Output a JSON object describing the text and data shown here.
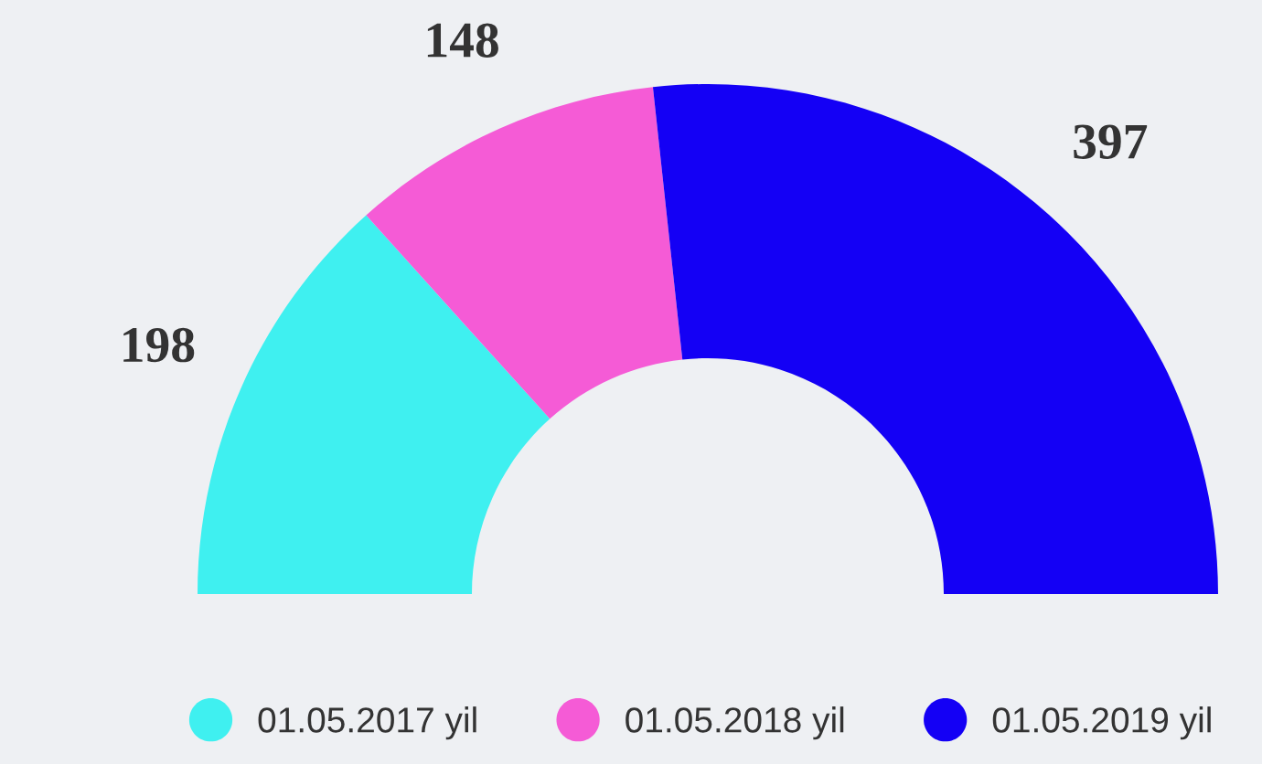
{
  "chart_data": {
    "type": "donut",
    "categories": [
      "01.05.2017 yil",
      "01.05.2018 yil",
      "01.05.2019 yil"
    ],
    "values": [
      198,
      148,
      397
    ],
    "colors": [
      "#3ff0f0",
      "#f55bd6",
      "#1400f5"
    ],
    "data_labels": true,
    "legend": "bottom"
  }
}
